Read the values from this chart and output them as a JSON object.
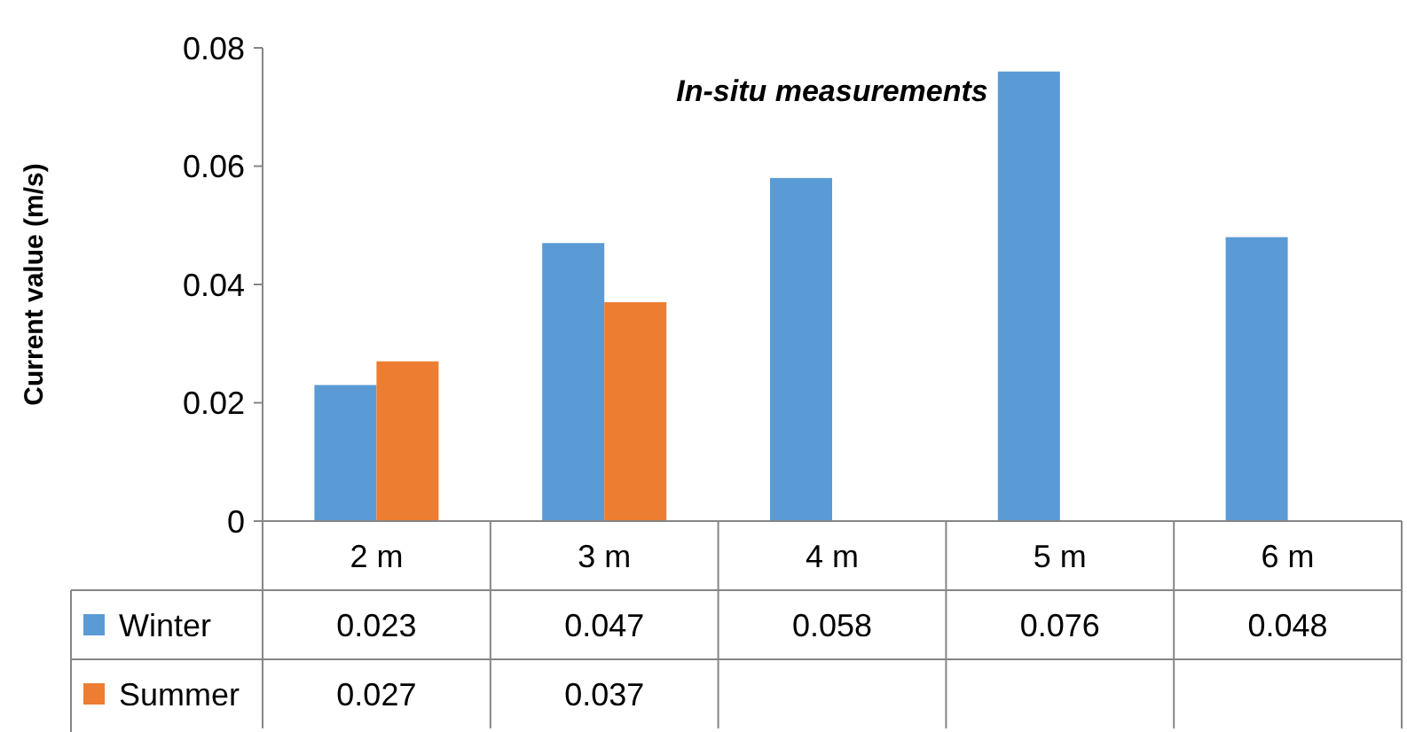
{
  "chart_data": {
    "type": "bar",
    "title": "In-situ measurements",
    "ylabel": "Current value (m/s)",
    "categories": [
      "2 m",
      "3 m",
      "4 m",
      "5 m",
      "6 m"
    ],
    "series": [
      {
        "name": "Winter",
        "color": "#5b9bd5",
        "values": [
          0.023,
          0.047,
          0.058,
          0.076,
          0.048
        ]
      },
      {
        "name": "Summer",
        "color": "#ed7d31",
        "values": [
          0.027,
          0.037,
          null,
          null,
          null
        ]
      }
    ],
    "ylim": [
      0,
      0.08
    ],
    "yticks": [
      0,
      0.02,
      0.04,
      0.06,
      0.08
    ],
    "grid": false,
    "legend": "bottom",
    "data_labels": true
  }
}
